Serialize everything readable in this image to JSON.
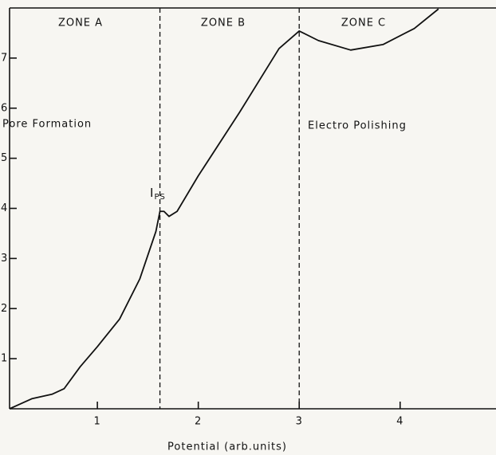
{
  "chart_data": {
    "type": "line",
    "x_label": "Potential (arb.units)",
    "x": [
      0.13,
      0.35,
      0.55,
      0.67,
      0.83,
      1.0,
      1.22,
      1.42,
      1.58,
      1.62,
      1.66,
      1.71,
      1.79,
      2.0,
      2.41,
      2.8,
      3.0,
      3.19,
      3.51,
      3.83,
      4.14,
      4.38
    ],
    "series": [
      {
        "color": "#111111",
        "values": [
          0,
          0.2,
          0.29,
          0.4,
          0.84,
          1.24,
          1.79,
          2.59,
          3.54,
          3.94,
          3.94,
          3.84,
          3.94,
          4.65,
          5.92,
          7.19,
          7.54,
          7.35,
          7.16,
          7.27,
          7.59,
          7.98
        ]
      }
    ],
    "xlim": [
      0.13,
      4.95
    ],
    "ylim": [
      0,
      8
    ],
    "xticks": [
      1,
      2,
      3,
      4
    ],
    "yticks": [
      1,
      2,
      3,
      4,
      5,
      6,
      7
    ],
    "zone_boundaries": [
      1.62,
      3.0
    ],
    "zones": [
      "ZONE A",
      "ZONE B",
      "ZONE C"
    ],
    "regions": [
      "Pore Formation",
      "Electro Polishing"
    ],
    "peak_label": {
      "main": "I",
      "sub": "PS"
    }
  }
}
